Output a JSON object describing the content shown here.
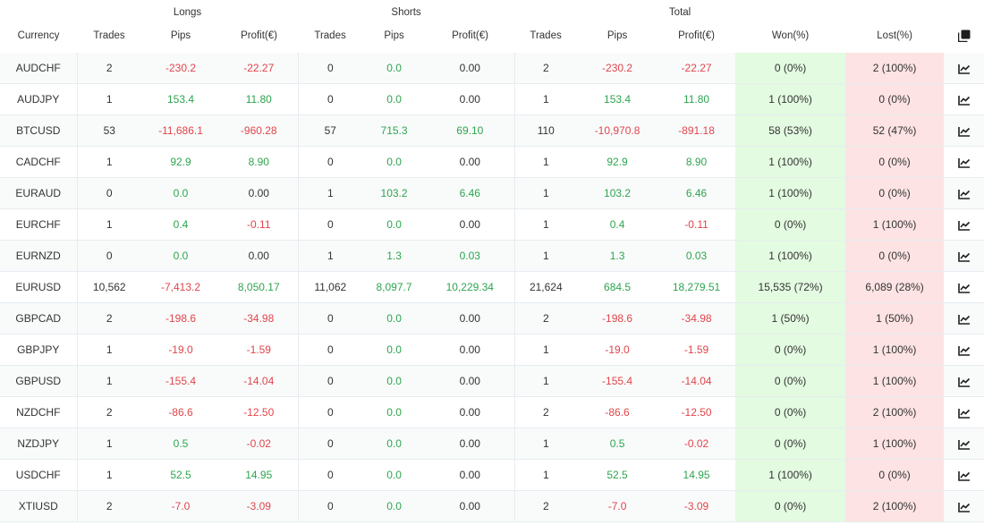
{
  "groups": {
    "longs": "Longs",
    "shorts": "Shorts",
    "total": "Total"
  },
  "headers": {
    "currency": "Currency",
    "trades": "Trades",
    "pips": "Pips",
    "profit": "Profit(€)",
    "won": "Won(%)",
    "lost": "Lost(%)"
  },
  "icons": {
    "header": "copy-icon",
    "row": "chart-line-icon"
  },
  "colors": {
    "positive": "#2ea44f",
    "negative": "#e0454b",
    "won_bg": "#e3fbe1",
    "lost_bg": "#fde3e3"
  },
  "rows": [
    {
      "currency": "AUDCHF",
      "l_trades": "2",
      "l_pips": "-230.2",
      "l_profit": "-22.27",
      "s_trades": "0",
      "s_pips": "0.0",
      "s_profit": "0.00",
      "t_trades": "2",
      "t_pips": "-230.2",
      "t_profit": "-22.27",
      "won": "0 (0%)",
      "lost": "2 (100%)"
    },
    {
      "currency": "AUDJPY",
      "l_trades": "1",
      "l_pips": "153.4",
      "l_profit": "11.80",
      "s_trades": "0",
      "s_pips": "0.0",
      "s_profit": "0.00",
      "t_trades": "1",
      "t_pips": "153.4",
      "t_profit": "11.80",
      "won": "1 (100%)",
      "lost": "0 (0%)"
    },
    {
      "currency": "BTCUSD",
      "l_trades": "53",
      "l_pips": "-11,686.1",
      "l_profit": "-960.28",
      "s_trades": "57",
      "s_pips": "715.3",
      "s_profit": "69.10",
      "t_trades": "110",
      "t_pips": "-10,970.8",
      "t_profit": "-891.18",
      "won": "58 (53%)",
      "lost": "52 (47%)"
    },
    {
      "currency": "CADCHF",
      "l_trades": "1",
      "l_pips": "92.9",
      "l_profit": "8.90",
      "s_trades": "0",
      "s_pips": "0.0",
      "s_profit": "0.00",
      "t_trades": "1",
      "t_pips": "92.9",
      "t_profit": "8.90",
      "won": "1 (100%)",
      "lost": "0 (0%)"
    },
    {
      "currency": "EURAUD",
      "l_trades": "0",
      "l_pips": "0.0",
      "l_profit": "0.00",
      "s_trades": "1",
      "s_pips": "103.2",
      "s_profit": "6.46",
      "t_trades": "1",
      "t_pips": "103.2",
      "t_profit": "6.46",
      "won": "1 (100%)",
      "lost": "0 (0%)"
    },
    {
      "currency": "EURCHF",
      "l_trades": "1",
      "l_pips": "0.4",
      "l_profit": "-0.11",
      "s_trades": "0",
      "s_pips": "0.0",
      "s_profit": "0.00",
      "t_trades": "1",
      "t_pips": "0.4",
      "t_profit": "-0.11",
      "won": "0 (0%)",
      "lost": "1 (100%)"
    },
    {
      "currency": "EURNZD",
      "l_trades": "0",
      "l_pips": "0.0",
      "l_profit": "0.00",
      "s_trades": "1",
      "s_pips": "1.3",
      "s_profit": "0.03",
      "t_trades": "1",
      "t_pips": "1.3",
      "t_profit": "0.03",
      "won": "1 (100%)",
      "lost": "0 (0%)"
    },
    {
      "currency": "EURUSD",
      "l_trades": "10,562",
      "l_pips": "-7,413.2",
      "l_profit": "8,050.17",
      "s_trades": "11,062",
      "s_pips": "8,097.7",
      "s_profit": "10,229.34",
      "t_trades": "21,624",
      "t_pips": "684.5",
      "t_profit": "18,279.51",
      "won": "15,535 (72%)",
      "lost": "6,089 (28%)"
    },
    {
      "currency": "GBPCAD",
      "l_trades": "2",
      "l_pips": "-198.6",
      "l_profit": "-34.98",
      "s_trades": "0",
      "s_pips": "0.0",
      "s_profit": "0.00",
      "t_trades": "2",
      "t_pips": "-198.6",
      "t_profit": "-34.98",
      "won": "1 (50%)",
      "lost": "1 (50%)"
    },
    {
      "currency": "GBPJPY",
      "l_trades": "1",
      "l_pips": "-19.0",
      "l_profit": "-1.59",
      "s_trades": "0",
      "s_pips": "0.0",
      "s_profit": "0.00",
      "t_trades": "1",
      "t_pips": "-19.0",
      "t_profit": "-1.59",
      "won": "0 (0%)",
      "lost": "1 (100%)"
    },
    {
      "currency": "GBPUSD",
      "l_trades": "1",
      "l_pips": "-155.4",
      "l_profit": "-14.04",
      "s_trades": "0",
      "s_pips": "0.0",
      "s_profit": "0.00",
      "t_trades": "1",
      "t_pips": "-155.4",
      "t_profit": "-14.04",
      "won": "0 (0%)",
      "lost": "1 (100%)"
    },
    {
      "currency": "NZDCHF",
      "l_trades": "2",
      "l_pips": "-86.6",
      "l_profit": "-12.50",
      "s_trades": "0",
      "s_pips": "0.0",
      "s_profit": "0.00",
      "t_trades": "2",
      "t_pips": "-86.6",
      "t_profit": "-12.50",
      "won": "0 (0%)",
      "lost": "2 (100%)"
    },
    {
      "currency": "NZDJPY",
      "l_trades": "1",
      "l_pips": "0.5",
      "l_profit": "-0.02",
      "s_trades": "0",
      "s_pips": "0.0",
      "s_profit": "0.00",
      "t_trades": "1",
      "t_pips": "0.5",
      "t_profit": "-0.02",
      "won": "0 (0%)",
      "lost": "1 (100%)"
    },
    {
      "currency": "USDCHF",
      "l_trades": "1",
      "l_pips": "52.5",
      "l_profit": "14.95",
      "s_trades": "0",
      "s_pips": "0.0",
      "s_profit": "0.00",
      "t_trades": "1",
      "t_pips": "52.5",
      "t_profit": "14.95",
      "won": "1 (100%)",
      "lost": "0 (0%)"
    },
    {
      "currency": "XTIUSD",
      "l_trades": "2",
      "l_pips": "-7.0",
      "l_profit": "-3.09",
      "s_trades": "0",
      "s_pips": "0.0",
      "s_profit": "0.00",
      "t_trades": "2",
      "t_pips": "-7.0",
      "t_profit": "-3.09",
      "won": "0 (0%)",
      "lost": "2 (100%)"
    }
  ]
}
